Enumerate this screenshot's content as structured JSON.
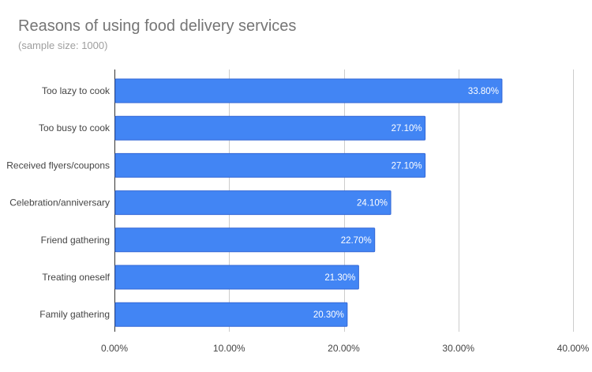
{
  "chart_data": {
    "type": "bar",
    "orientation": "horizontal",
    "title": "Reasons of using food delivery services",
    "subtitle": "(sample size: 1000)",
    "categories": [
      "Too lazy to cook",
      "Too busy to cook",
      "Received flyers/coupons",
      "Celebration/anniversary",
      "Friend gathering",
      "Treating oneself",
      "Family gathering"
    ],
    "values": [
      33.8,
      27.1,
      27.1,
      24.1,
      22.7,
      21.3,
      20.3
    ],
    "data_labels": [
      "33.80%",
      "27.10%",
      "27.10%",
      "24.10%",
      "22.70%",
      "21.30%",
      "20.30%"
    ],
    "x_ticks": [
      0,
      10,
      20,
      30,
      40
    ],
    "x_tick_labels": [
      "0.00%",
      "10.00%",
      "20.00%",
      "30.00%",
      "40.00%"
    ],
    "xlim": [
      0,
      40
    ],
    "grid": true,
    "legend": "none",
    "colors": {
      "bar": "#4285f4",
      "bar_border": "#3367d6",
      "grid": "#cccccc",
      "label": "#444444",
      "value_label": "#ffffff",
      "title": "#757575",
      "subtitle": "#9e9e9e"
    }
  }
}
